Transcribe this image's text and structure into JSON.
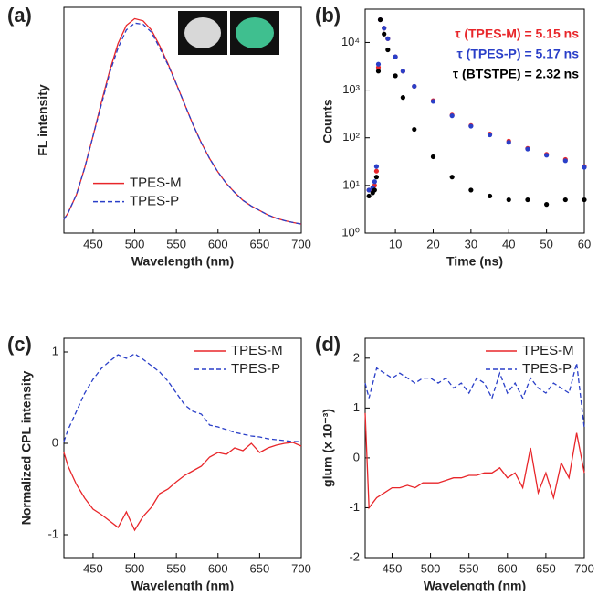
{
  "chart_data": [
    {
      "type": "line",
      "label": "(a)",
      "xlabel": "Wavelength (nm)",
      "ylabel": "FL intensity",
      "x": [
        415,
        420,
        430,
        440,
        450,
        460,
        470,
        480,
        490,
        500,
        510,
        520,
        530,
        540,
        550,
        560,
        570,
        580,
        590,
        600,
        610,
        620,
        630,
        640,
        650,
        660,
        670,
        680,
        690,
        700
      ],
      "series": [
        {
          "name": "TPES-M",
          "color": "#e8262a",
          "linestyle": "solid",
          "values": [
            0.06,
            0.09,
            0.17,
            0.29,
            0.43,
            0.58,
            0.72,
            0.84,
            0.92,
            0.95,
            0.94,
            0.9,
            0.83,
            0.75,
            0.66,
            0.57,
            0.48,
            0.4,
            0.33,
            0.27,
            0.22,
            0.18,
            0.145,
            0.12,
            0.1,
            0.08,
            0.066,
            0.055,
            0.047,
            0.04
          ]
        },
        {
          "name": "TPES-P",
          "color": "#2a3fc8",
          "linestyle": "dashed",
          "values": [
            0.06,
            0.09,
            0.17,
            0.29,
            0.43,
            0.57,
            0.71,
            0.82,
            0.9,
            0.93,
            0.925,
            0.89,
            0.82,
            0.745,
            0.66,
            0.57,
            0.48,
            0.4,
            0.33,
            0.27,
            0.22,
            0.18,
            0.145,
            0.12,
            0.1,
            0.08,
            0.066,
            0.055,
            0.047,
            0.04
          ]
        }
      ],
      "xlim": [
        415,
        700
      ],
      "xticks": [
        450,
        500,
        550,
        600,
        650,
        700
      ],
      "ylim": [
        0,
        1
      ],
      "yticks": [],
      "legend": "lower left"
    },
    {
      "type": "scatter",
      "label": "(b)",
      "xlabel": "Time (ns)",
      "ylabel": "Counts",
      "log_y": true,
      "x": [
        3,
        4,
        4.5,
        5,
        5.5,
        6,
        7,
        8,
        10,
        12,
        15,
        20,
        25,
        30,
        35,
        40,
        45,
        50,
        55,
        60
      ],
      "series": [
        {
          "name": "τ (TPES-M) = 5.15 ns",
          "color": "#e8262a",
          "values": [
            8,
            8,
            10,
            20,
            3000,
            30000,
            20000,
            12000,
            5000,
            2500,
            1200,
            600,
            300,
            180,
            120,
            85,
            60,
            45,
            35,
            25
          ]
        },
        {
          "name": "τ (TPES-P) = 5.17 ns",
          "color": "#2a3fc8",
          "values": [
            8,
            9,
            12,
            25,
            3500,
            30000,
            20000,
            12000,
            5000,
            2500,
            1200,
            580,
            290,
            175,
            115,
            80,
            58,
            43,
            33,
            24
          ]
        },
        {
          "name": "τ (BTSTPE) = 2.32 ns",
          "color": "#000000",
          "values": [
            6,
            7,
            8,
            15,
            2500,
            30000,
            15000,
            7000,
            2000,
            700,
            150,
            40,
            15,
            8,
            6,
            5,
            5,
            4,
            5,
            5
          ]
        }
      ],
      "xlim": [
        2,
        60
      ],
      "xticks": [
        10,
        20,
        30,
        40,
        50,
        60
      ],
      "ylim": [
        1,
        50000
      ],
      "yticks": [
        {
          "value": 1,
          "label": "10⁰"
        },
        {
          "value": 10,
          "label": "10¹"
        },
        {
          "value": 100,
          "label": "10²"
        },
        {
          "value": 1000,
          "label": "10³"
        },
        {
          "value": 10000,
          "label": "10⁴"
        }
      ],
      "legend": "upper right"
    },
    {
      "type": "line",
      "label": "(c)",
      "xlabel": "Wavelength (nm)",
      "ylabel": "Normalized CPL intensity",
      "x": [
        415,
        420,
        430,
        440,
        450,
        460,
        470,
        480,
        490,
        500,
        510,
        520,
        530,
        540,
        550,
        560,
        570,
        580,
        590,
        600,
        610,
        620,
        630,
        640,
        650,
        660,
        670,
        680,
        690,
        700
      ],
      "series": [
        {
          "name": "TPES-M",
          "color": "#e8262a",
          "linestyle": "solid",
          "values": [
            -0.1,
            -0.25,
            -0.45,
            -0.6,
            -0.72,
            -0.78,
            -0.85,
            -0.92,
            -0.75,
            -0.95,
            -0.8,
            -0.7,
            -0.55,
            -0.5,
            -0.42,
            -0.35,
            -0.3,
            -0.25,
            -0.15,
            -0.1,
            -0.12,
            -0.05,
            -0.08,
            0.0,
            -0.1,
            -0.05,
            -0.02,
            0.0,
            0.01,
            -0.03
          ]
        },
        {
          "name": "TPES-P",
          "color": "#2a3fc8",
          "linestyle": "dashed",
          "values": [
            0.02,
            0.15,
            0.35,
            0.55,
            0.7,
            0.82,
            0.9,
            0.97,
            0.93,
            0.98,
            0.92,
            0.85,
            0.78,
            0.68,
            0.55,
            0.42,
            0.35,
            0.32,
            0.2,
            0.18,
            0.15,
            0.12,
            0.1,
            0.08,
            0.07,
            0.05,
            0.04,
            0.03,
            0.02,
            0.02
          ]
        }
      ],
      "xlim": [
        415,
        700
      ],
      "xticks": [
        450,
        500,
        550,
        600,
        650,
        700
      ],
      "ylim": [
        -1.25,
        1.15
      ],
      "yticks": [
        -1,
        0,
        1
      ],
      "legend": "upper right"
    },
    {
      "type": "line",
      "label": "(d)",
      "xlabel": "Wavelength (nm)",
      "ylabel": "glum (x 10⁻³)",
      "x": [
        415,
        420,
        430,
        440,
        450,
        460,
        470,
        480,
        490,
        500,
        510,
        520,
        530,
        540,
        550,
        560,
        570,
        580,
        590,
        600,
        610,
        620,
        630,
        640,
        650,
        660,
        670,
        680,
        690,
        700
      ],
      "series": [
        {
          "name": "TPES-M",
          "color": "#e8262a",
          "linestyle": "solid",
          "values": [
            0.9,
            -1.0,
            -0.8,
            -0.7,
            -0.6,
            -0.6,
            -0.55,
            -0.6,
            -0.5,
            -0.5,
            -0.5,
            -0.45,
            -0.4,
            -0.4,
            -0.35,
            -0.35,
            -0.3,
            -0.3,
            -0.2,
            -0.4,
            -0.3,
            -0.6,
            0.2,
            -0.7,
            -0.3,
            -0.8,
            -0.1,
            -0.4,
            0.5,
            -0.3
          ]
        },
        {
          "name": "TPES-P",
          "color": "#2a3fc8",
          "linestyle": "dashed",
          "values": [
            1.5,
            1.2,
            1.8,
            1.7,
            1.6,
            1.7,
            1.6,
            1.5,
            1.6,
            1.6,
            1.5,
            1.6,
            1.4,
            1.5,
            1.3,
            1.6,
            1.5,
            1.2,
            1.7,
            1.3,
            1.5,
            1.2,
            1.6,
            1.4,
            1.3,
            1.5,
            1.4,
            1.3,
            1.9,
            0.6
          ]
        }
      ],
      "xlim": [
        415,
        700
      ],
      "xticks": [
        450,
        500,
        550,
        600,
        650,
        700
      ],
      "ylim": [
        -2,
        2.4
      ],
      "yticks": [
        -2,
        -1,
        0,
        1,
        2
      ],
      "legend": "upper right"
    }
  ]
}
